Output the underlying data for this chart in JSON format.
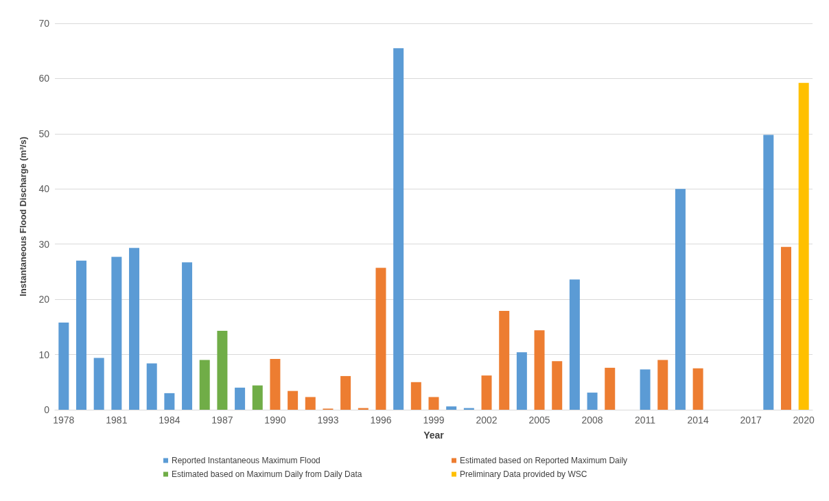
{
  "chart_data": {
    "type": "bar",
    "xlabel": "Year",
    "ylabel": "Instantaneous Flood Discharge (m³/s)",
    "categories": [
      "1978",
      null,
      null,
      "1981",
      null,
      null,
      "1984",
      null,
      null,
      "1987",
      null,
      null,
      "1990",
      null,
      null,
      "1993",
      null,
      null,
      "1996",
      null,
      null,
      "1999",
      null,
      null,
      "2002",
      null,
      null,
      "2005",
      null,
      null,
      "2008",
      null,
      null,
      "2011",
      null,
      null,
      "2014",
      null,
      null,
      "2017",
      null,
      null,
      "2020"
    ],
    "series": [
      {
        "name": "Reported Instantaneous Maximum Flood",
        "color": "#5b9bd5",
        "values": [
          15.8,
          27,
          9.4,
          27.7,
          29.3,
          8.4,
          3.0,
          26.7,
          null,
          null,
          4.0,
          null,
          null,
          null,
          null,
          null,
          null,
          null,
          null,
          65.5,
          null,
          null,
          0.6,
          0.3,
          null,
          null,
          10.4,
          null,
          null,
          23.6,
          3.1,
          null,
          null,
          7.3,
          null,
          40.0,
          null,
          null,
          null,
          null,
          49.8,
          null,
          null
        ]
      },
      {
        "name": "Estimated based on Reported Maximum Daily",
        "color": "#ed7d31",
        "values": [
          null,
          null,
          null,
          null,
          null,
          null,
          null,
          null,
          null,
          null,
          null,
          null,
          9.2,
          3.4,
          2.3,
          0.2,
          6.1,
          0.3,
          25.7,
          null,
          5.0,
          2.3,
          null,
          null,
          6.2,
          17.9,
          null,
          14.4,
          8.8,
          null,
          null,
          7.6,
          null,
          null,
          9.0,
          null,
          7.5,
          null,
          null,
          null,
          null,
          29.5,
          null
        ]
      },
      {
        "name": "Estimated based on Maximum Daily from Daily Data",
        "color": "#70ad47",
        "values": [
          null,
          null,
          null,
          null,
          null,
          null,
          null,
          null,
          9.0,
          14.3,
          null,
          4.4,
          null,
          null,
          null,
          null,
          null,
          null,
          null,
          null,
          null,
          null,
          null,
          null,
          null,
          null,
          null,
          null,
          null,
          null,
          null,
          null,
          null,
          null,
          null,
          null,
          null,
          null,
          null,
          null,
          null,
          null,
          null
        ]
      },
      {
        "name": "Preliminary Data provided by WSC",
        "color": "#ffc000",
        "values": [
          null,
          null,
          null,
          null,
          null,
          null,
          null,
          null,
          null,
          null,
          null,
          null,
          null,
          null,
          null,
          null,
          null,
          null,
          null,
          null,
          null,
          null,
          null,
          null,
          null,
          null,
          null,
          null,
          null,
          null,
          null,
          null,
          null,
          null,
          null,
          null,
          null,
          null,
          null,
          null,
          null,
          null,
          59.2
        ]
      }
    ],
    "ylim": [
      0,
      70
    ],
    "yticks": [
      0,
      10,
      20,
      30,
      40,
      50,
      60,
      70
    ],
    "grid": "y",
    "legend": "bottom"
  }
}
